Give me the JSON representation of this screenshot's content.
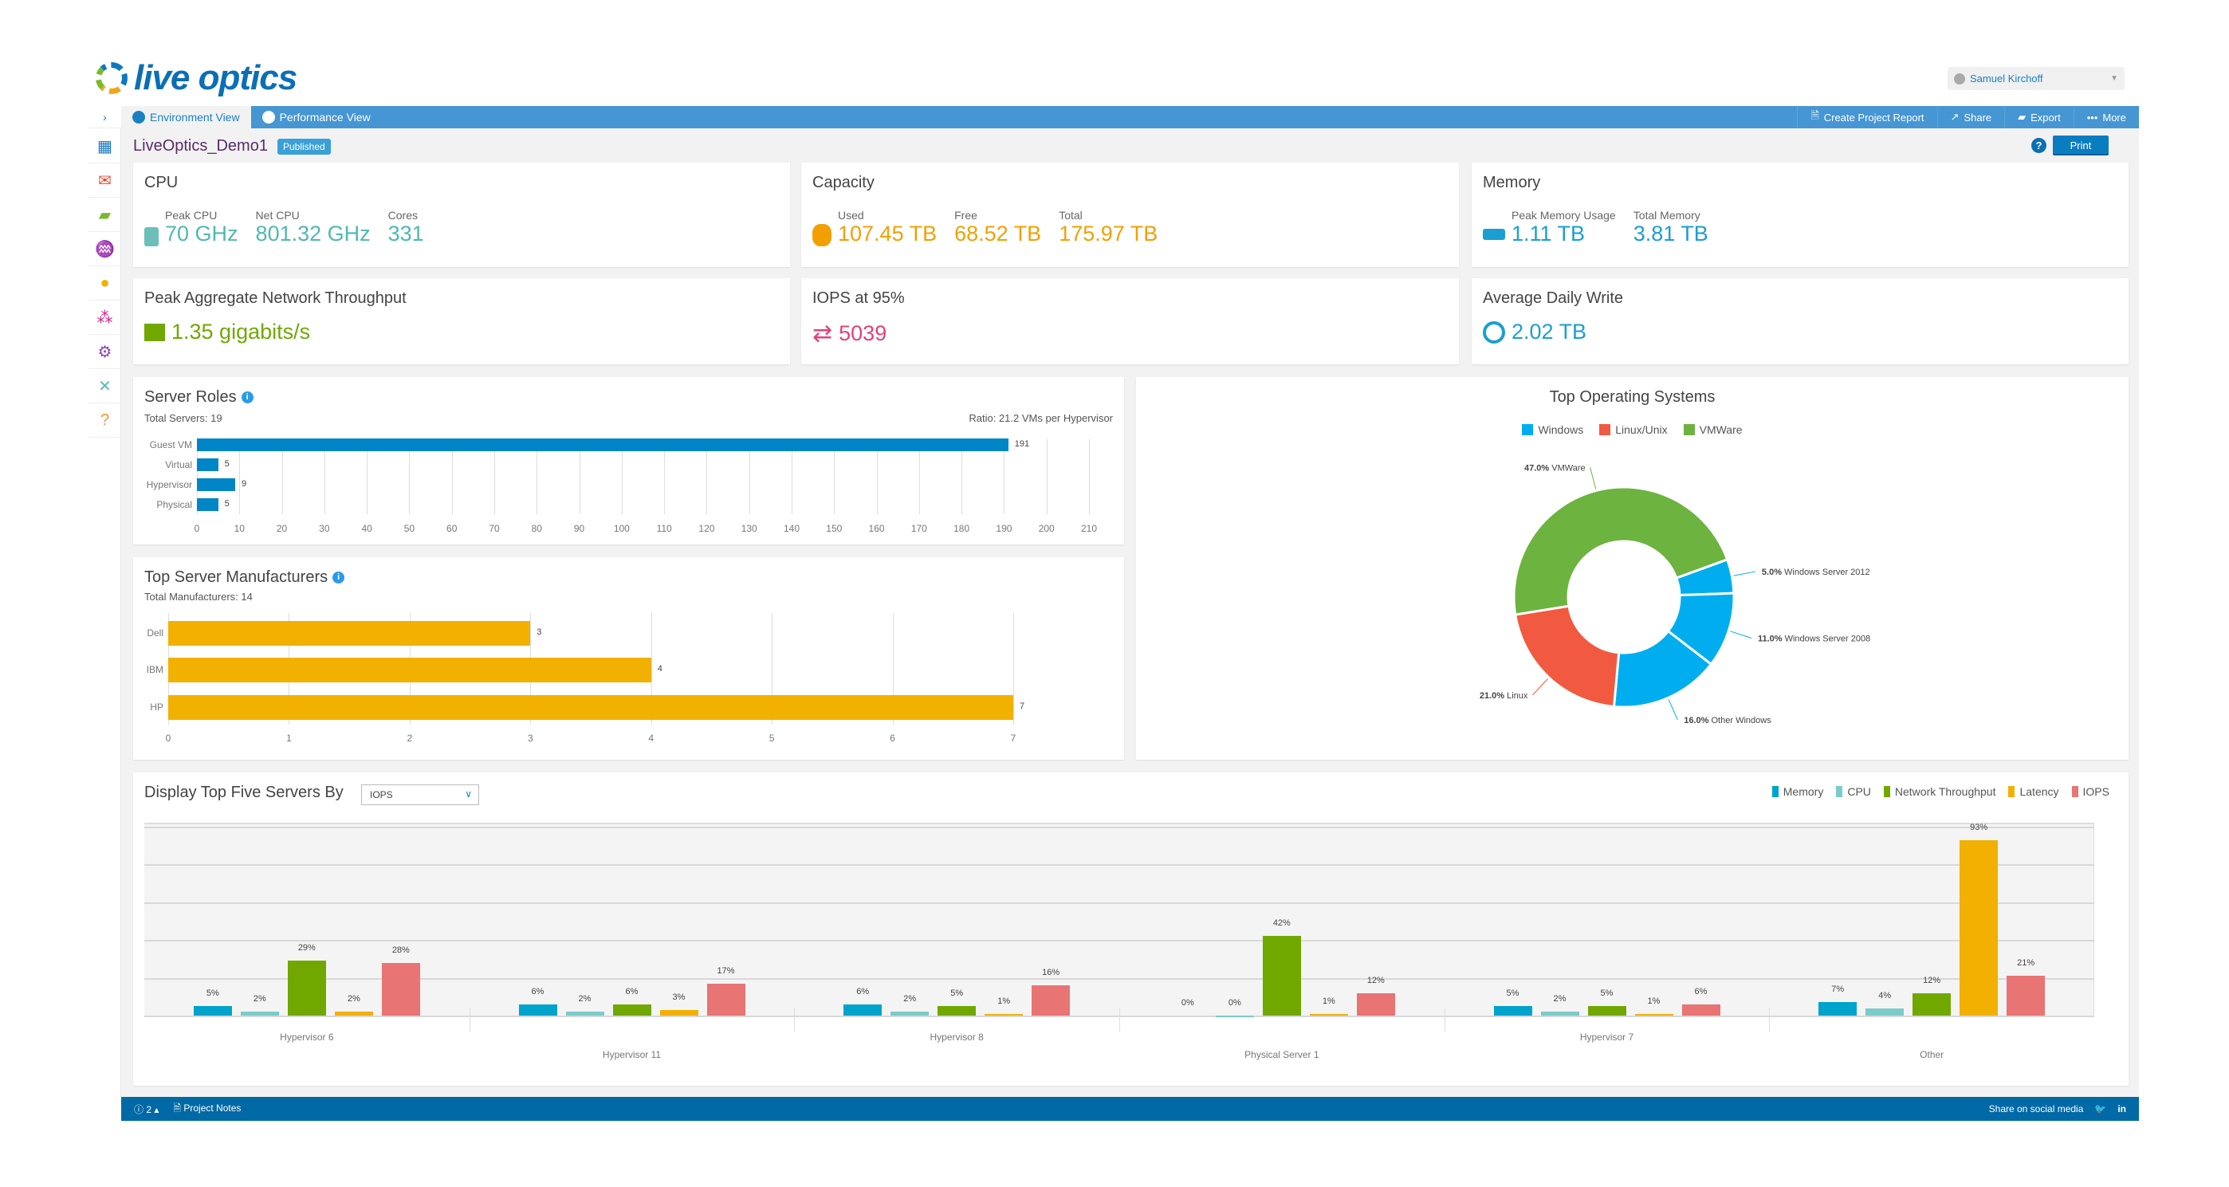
{
  "app": {
    "logo_text": "live optics",
    "user": "Samuel Kirchoff"
  },
  "nav": {
    "tabs": [
      {
        "label": "Environment View"
      },
      {
        "label": "Performance View"
      }
    ],
    "actions": [
      {
        "label": "Create Project Report",
        "icon": "document-icon"
      },
      {
        "label": "Share",
        "icon": "share-icon"
      },
      {
        "label": "Export",
        "icon": "export-icon"
      },
      {
        "label": "More",
        "icon": "ellipsis-icon"
      }
    ]
  },
  "sidebar": {
    "items": [
      {
        "icon": "dashboard-icon",
        "color": "#1675bd"
      },
      {
        "icon": "mail-icon",
        "color": "#e8452c"
      },
      {
        "icon": "folder-icon",
        "color": "#7ab929"
      },
      {
        "icon": "pulse-icon",
        "color": "#0099d8"
      },
      {
        "icon": "user-icon",
        "color": "#f2b000"
      },
      {
        "icon": "group-icon",
        "color": "#d4208e"
      },
      {
        "icon": "gear-icon",
        "color": "#8a3fc5"
      },
      {
        "icon": "tools-icon",
        "color": "#5bbcb5"
      },
      {
        "icon": "help-icon",
        "color": "#f5972a"
      }
    ]
  },
  "project": {
    "name": "LiveOptics_Demo1",
    "status": "Published",
    "help": "?",
    "print": "Print"
  },
  "cards": {
    "cpu": {
      "title": "CPU",
      "color": "#4fb8b2",
      "metrics": [
        {
          "label": "Peak CPU",
          "value": "70 GHz"
        },
        {
          "label": "Net CPU",
          "value": "801.32 GHz"
        },
        {
          "label": "Cores",
          "value": "331"
        }
      ]
    },
    "capacity": {
      "title": "Capacity",
      "color": "#f2a000",
      "metrics": [
        {
          "label": "Used",
          "value": "107.45 TB"
        },
        {
          "label": "Free",
          "value": "68.52 TB"
        },
        {
          "label": "Total",
          "value": "175.97 TB"
        }
      ]
    },
    "memory": {
      "title": "Memory",
      "color": "#1a9fd0",
      "metrics": [
        {
          "label": "Peak Memory Usage",
          "value": "1.11 TB"
        },
        {
          "label": "Total Memory",
          "value": "3.81 TB"
        }
      ]
    },
    "network": {
      "title": "Peak Aggregate Network Throughput",
      "value": "1.35 gigabits/s",
      "color": "#70a800"
    },
    "iops": {
      "title": "IOPS at 95%",
      "value": "5039",
      "color": "#e0437a"
    },
    "write": {
      "title": "Average Daily Write",
      "value": "2.02 TB",
      "color": "#1a9fd0"
    }
  },
  "chart_data": [
    {
      "id": "server_roles",
      "type": "bar",
      "orientation": "horizontal",
      "title": "Server Roles",
      "subtitle": "Total Servers: 19",
      "annotation": "Ratio: 21.2 VMs per Hypervisor",
      "categories": [
        "Guest VM",
        "Virtual",
        "Hypervisor",
        "Physical"
      ],
      "values": [
        191,
        5,
        9,
        5
      ],
      "xlim": [
        0,
        210
      ],
      "xticks": [
        0,
        10,
        20,
        30,
        40,
        50,
        60,
        70,
        80,
        90,
        100,
        110,
        120,
        130,
        140,
        150,
        160,
        170,
        180,
        190,
        200,
        210
      ],
      "color": "#0085c6",
      "grid": true
    },
    {
      "id": "manufacturers",
      "type": "bar",
      "orientation": "horizontal",
      "title": "Top Server Manufacturers",
      "subtitle": "Total Manufacturers: 14",
      "categories": [
        "Dell",
        "IBM",
        "HP"
      ],
      "values": [
        3,
        4,
        7
      ],
      "xlim": [
        0,
        7
      ],
      "xticks": [
        0,
        1,
        2,
        3,
        4,
        5,
        6,
        7
      ],
      "color": "#f2b000",
      "grid": true
    },
    {
      "id": "os",
      "type": "pie",
      "donut": true,
      "title": "Top Operating Systems",
      "legend": [
        {
          "name": "Windows",
          "color": "#00aeef"
        },
        {
          "name": "Linux/Unix",
          "color": "#f15a40"
        },
        {
          "name": "VMWare",
          "color": "#6db33f"
        }
      ],
      "slices": [
        {
          "label": "Windows Server 2012",
          "value": 5.0,
          "color": "#00aeef"
        },
        {
          "label": "Windows Server 2008",
          "value": 11.0,
          "color": "#00aeef"
        },
        {
          "label": "Other Windows",
          "value": 16.0,
          "color": "#00aeef"
        },
        {
          "label": "Linux",
          "value": 21.0,
          "color": "#f15a40"
        },
        {
          "label": "VMWare",
          "value": 47.0,
          "color": "#6db33f"
        }
      ]
    },
    {
      "id": "top_five",
      "type": "bar",
      "title": "Display Top Five Servers By",
      "selector_value": "IOPS",
      "ylim": [
        0,
        100
      ],
      "grid": true,
      "legend_placement": "top-right",
      "categories": [
        "Hypervisor 6",
        "Hypervisor 11",
        "Hypervisor 8",
        "Physical Server 1",
        "Hypervisor 7",
        "Other"
      ],
      "series": [
        {
          "name": "Memory",
          "color": "#00a3cc",
          "values": [
            5,
            6,
            6,
            0,
            5,
            7
          ]
        },
        {
          "name": "CPU",
          "color": "#7accc8",
          "values": [
            2,
            2,
            2,
            0,
            2,
            4
          ]
        },
        {
          "name": "Network Throughput",
          "color": "#70a800",
          "values": [
            29,
            6,
            5,
            42,
            5,
            12
          ]
        },
        {
          "name": "Latency",
          "color": "#f2b000",
          "values": [
            2,
            3,
            1,
            1,
            1,
            93
          ]
        },
        {
          "name": "IOPS",
          "color": "#e87474",
          "values": [
            28,
            17,
            16,
            12,
            6,
            21
          ]
        }
      ]
    }
  ],
  "footer": {
    "count": "2",
    "notes": "Project Notes",
    "share": "Share on social media"
  }
}
